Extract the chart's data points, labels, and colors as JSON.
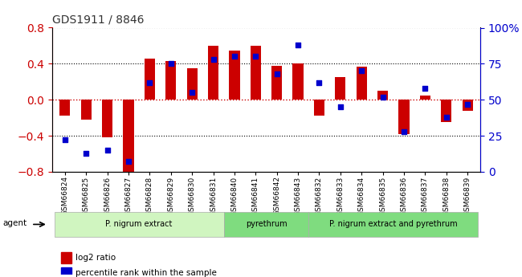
{
  "title": "GDS1911 / 8846",
  "samples": [
    "GSM66824",
    "GSM66825",
    "GSM66826",
    "GSM66827",
    "GSM66828",
    "GSM66829",
    "GSM66830",
    "GSM66831",
    "GSM66840",
    "GSM66841",
    "GSM66842",
    "GSM66843",
    "GSM66832",
    "GSM66833",
    "GSM66834",
    "GSM66835",
    "GSM66836",
    "GSM66837",
    "GSM66838",
    "GSM66839"
  ],
  "log2_ratio": [
    -0.18,
    -0.22,
    -0.42,
    -0.8,
    0.46,
    0.43,
    0.35,
    0.6,
    0.55,
    0.6,
    0.38,
    0.4,
    -0.18,
    0.25,
    0.37,
    0.1,
    -0.38,
    0.05,
    -0.25,
    -0.12
  ],
  "pct_rank": [
    22,
    13,
    15,
    7,
    62,
    75,
    55,
    78,
    80,
    80,
    68,
    88,
    62,
    45,
    70,
    52,
    28,
    58,
    38,
    47
  ],
  "groups": [
    {
      "label": "P. nigrum extract",
      "start": 0,
      "end": 8,
      "color": "#c8f0c8"
    },
    {
      "label": "pyrethrum",
      "start": 8,
      "end": 12,
      "color": "#90e890"
    },
    {
      "label": "P. nigrum extract and pyrethrum",
      "start": 12,
      "end": 20,
      "color": "#90e890"
    }
  ],
  "ylim": [
    -0.8,
    0.8
  ],
  "yticks": [
    -0.8,
    -0.4,
    0.0,
    0.4,
    0.8
  ],
  "y2ticks": [
    0,
    25,
    50,
    75,
    100
  ],
  "bar_color": "#cc0000",
  "dot_color": "#0000cc",
  "zero_line_color": "#cc0000",
  "grid_color": "#000000",
  "bg_color": "#ffffff",
  "title_color": "#333333"
}
